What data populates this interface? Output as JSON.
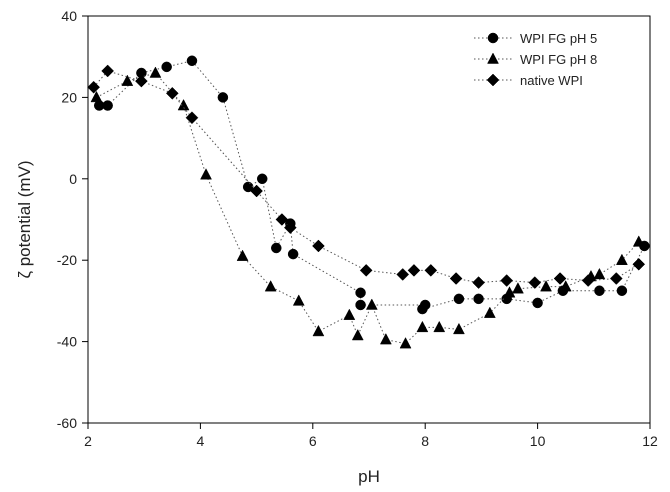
{
  "chart_data": {
    "type": "scatter",
    "xlabel": "pH",
    "ylabel": "ζ potential (mV)",
    "xlim": [
      2,
      12
    ],
    "ylim": [
      -60,
      40
    ],
    "xticks": [
      2,
      4,
      6,
      8,
      10,
      12
    ],
    "yticks": [
      -60,
      -40,
      -20,
      0,
      20,
      40
    ],
    "grid": false,
    "legend_position": "top-right",
    "series": [
      {
        "name": "WPI FG pH 5",
        "marker": "circle",
        "line": "dotted",
        "color": "#000000",
        "points": [
          [
            2.2,
            18
          ],
          [
            2.35,
            18
          ],
          [
            2.95,
            26
          ],
          [
            3.4,
            27.5
          ],
          [
            3.85,
            29
          ],
          [
            4.4,
            20
          ],
          [
            4.85,
            -2
          ],
          [
            5.1,
            0
          ],
          [
            5.35,
            -17
          ],
          [
            5.6,
            -11
          ],
          [
            5.65,
            -18.5
          ],
          [
            6.85,
            -28
          ],
          [
            6.85,
            -31
          ],
          [
            8.0,
            -31
          ],
          [
            7.95,
            -32
          ],
          [
            8.6,
            -29.5
          ],
          [
            8.95,
            -29.5
          ],
          [
            9.45,
            -29.5
          ],
          [
            10.0,
            -30.5
          ],
          [
            10.45,
            -27.5
          ],
          [
            11.1,
            -27.5
          ],
          [
            11.5,
            -27.5
          ],
          [
            11.9,
            -16.5
          ]
        ]
      },
      {
        "name": "WPI FG pH 8",
        "marker": "triangle",
        "line": "dotted",
        "color": "#000000",
        "points": [
          [
            2.15,
            20
          ],
          [
            2.7,
            24
          ],
          [
            3.2,
            26
          ],
          [
            3.7,
            18
          ],
          [
            4.1,
            1
          ],
          [
            4.75,
            -19
          ],
          [
            5.25,
            -26.5
          ],
          [
            5.75,
            -30
          ],
          [
            6.1,
            -37.5
          ],
          [
            6.65,
            -33.5
          ],
          [
            6.8,
            -38.5
          ],
          [
            7.05,
            -31
          ],
          [
            7.3,
            -39.5
          ],
          [
            7.65,
            -40.5
          ],
          [
            7.95,
            -36.5
          ],
          [
            8.25,
            -36.5
          ],
          [
            8.6,
            -37
          ],
          [
            9.15,
            -33
          ],
          [
            9.5,
            -28
          ],
          [
            9.65,
            -27
          ],
          [
            10.15,
            -26.5
          ],
          [
            10.5,
            -26.5
          ],
          [
            10.95,
            -24
          ],
          [
            11.1,
            -23.5
          ],
          [
            11.5,
            -20
          ],
          [
            11.8,
            -15.5
          ]
        ]
      },
      {
        "name": "native WPI",
        "marker": "diamond",
        "line": "dotted",
        "color": "#000000",
        "points": [
          [
            2.1,
            22.5
          ],
          [
            2.35,
            26.5
          ],
          [
            2.95,
            24
          ],
          [
            3.5,
            21
          ],
          [
            3.85,
            15
          ],
          [
            5.0,
            -3
          ],
          [
            5.45,
            -10
          ],
          [
            5.6,
            -12
          ],
          [
            6.1,
            -16.5
          ],
          [
            6.95,
            -22.5
          ],
          [
            7.6,
            -23.5
          ],
          [
            7.8,
            -22.5
          ],
          [
            8.1,
            -22.5
          ],
          [
            8.55,
            -24.5
          ],
          [
            8.95,
            -25.5
          ],
          [
            9.45,
            -25
          ],
          [
            9.95,
            -25.5
          ],
          [
            10.4,
            -24.5
          ],
          [
            10.9,
            -25
          ],
          [
            11.4,
            -24.5
          ],
          [
            11.8,
            -21
          ]
        ]
      }
    ]
  }
}
